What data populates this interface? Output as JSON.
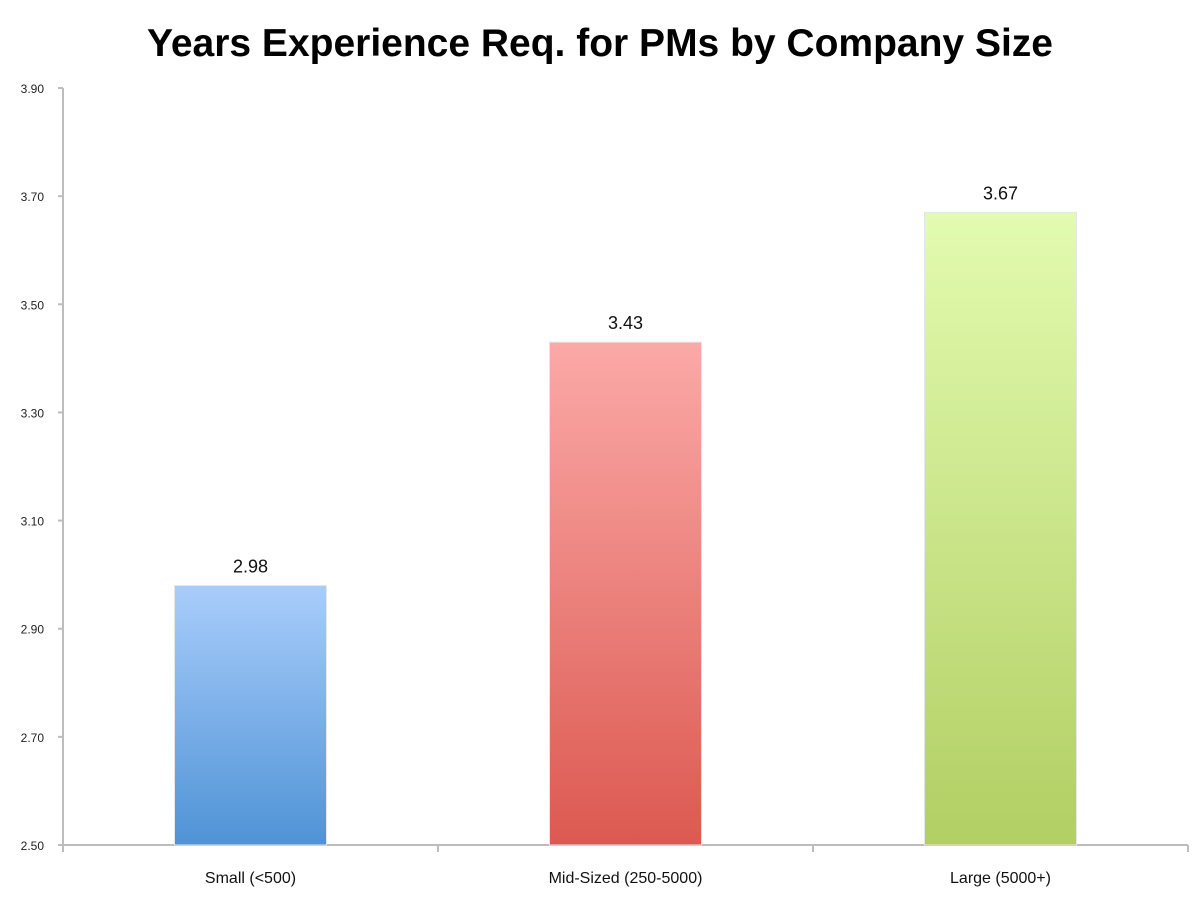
{
  "chart_data": {
    "type": "bar",
    "title": "Years Experience Req. for PMs by Company Size",
    "xlabel": "",
    "ylabel": "",
    "categories": [
      "Small (<500)",
      "Mid-Sized (250-5000)",
      "Large (5000+)"
    ],
    "values": [
      2.98,
      3.43,
      3.67
    ],
    "data_labels": [
      "2.98",
      "3.43",
      "3.67"
    ],
    "ylim": [
      2.5,
      3.9
    ],
    "yticks": [
      "2.50",
      "2.70",
      "2.90",
      "3.10",
      "3.30",
      "3.50",
      "3.70",
      "3.90"
    ],
    "grid": false,
    "legend": "none",
    "colors": [
      {
        "top": "#a9cdfb",
        "bottom": "#4f93d6"
      },
      {
        "top": "#fba9a7",
        "bottom": "#dc5951"
      },
      {
        "top": "#e2fbb0",
        "bottom": "#b1cf63"
      }
    ]
  }
}
